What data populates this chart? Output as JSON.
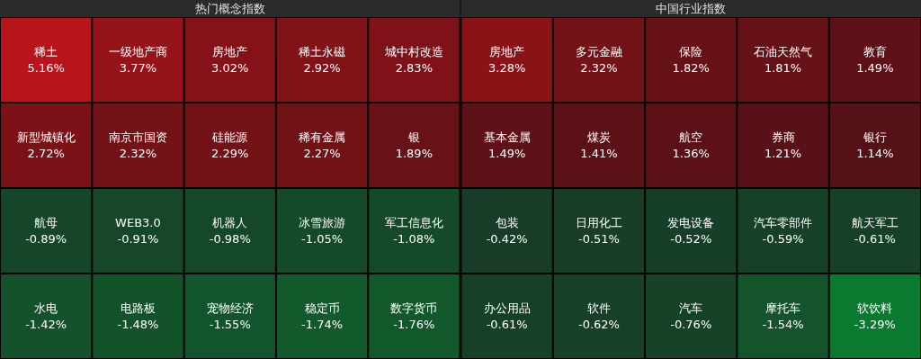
{
  "chart_data": [
    {
      "type": "other",
      "title": "热门概念指数",
      "categories": [
        "稀土",
        "一级地产商",
        "房地产",
        "稀土永磁",
        "城中村改造",
        "新型城镇化",
        "南京市国资",
        "硅能源",
        "稀有金属",
        "银",
        "航母",
        "WEB3.0",
        "机器人",
        "冰雪旅游",
        "军工信息化",
        "水电",
        "电路板",
        "宠物经济",
        "稳定币",
        "数字货币"
      ],
      "values": [
        5.16,
        3.77,
        3.02,
        2.92,
        2.83,
        2.72,
        2.32,
        2.29,
        2.27,
        1.89,
        -0.89,
        -0.91,
        -0.98,
        -1.05,
        -1.08,
        -1.42,
        -1.48,
        -1.55,
        -1.74,
        -1.76
      ],
      "value_labels": [
        "5.16%",
        "3.77%",
        "3.02%",
        "2.92%",
        "2.83%",
        "2.72%",
        "2.32%",
        "2.29%",
        "2.27%",
        "1.89%",
        "-0.89%",
        "-0.91%",
        "-0.98%",
        "-1.05%",
        "-1.08%",
        "-1.42%",
        "-1.48%",
        "-1.55%",
        "-1.74%",
        "-1.76%"
      ]
    },
    {
      "type": "other",
      "title": "中国行业指数",
      "categories": [
        "房地产",
        "多元金融",
        "保险",
        "石油天然气",
        "教育",
        "基本金属",
        "煤炭",
        "航空",
        "券商",
        "银行",
        "包装",
        "日用化工",
        "发电设备",
        "汽车零部件",
        "航天军工",
        "办公用品",
        "软件",
        "汽车",
        "摩托车",
        "软饮料"
      ],
      "values": [
        3.28,
        2.32,
        1.82,
        1.81,
        1.49,
        1.49,
        1.41,
        1.36,
        1.21,
        1.14,
        -0.42,
        -0.51,
        -0.52,
        -0.59,
        -0.61,
        -0.61,
        -0.62,
        -0.76,
        -1.54,
        -3.29
      ],
      "value_labels": [
        "3.28%",
        "2.32%",
        "1.82%",
        "1.81%",
        "1.49%",
        "1.49%",
        "1.41%",
        "1.36%",
        "1.21%",
        "1.14%",
        "-0.42%",
        "-0.51%",
        "-0.52%",
        "-0.59%",
        "-0.61%",
        "-0.61%",
        "-0.62%",
        "-0.76%",
        "-1.54%",
        "-3.29%"
      ]
    }
  ]
}
